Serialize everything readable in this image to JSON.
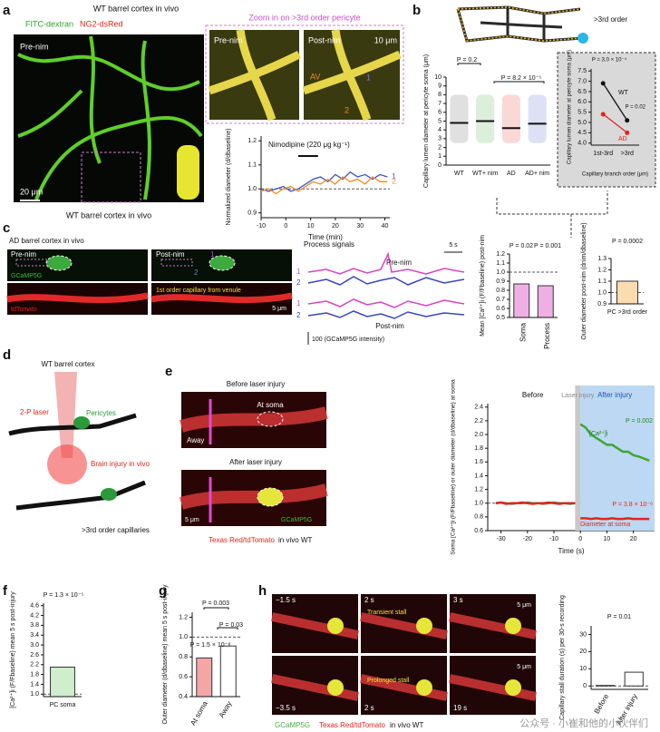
{
  "a": {
    "label": "a",
    "title": "WT barrel cortex in vivo",
    "dye": "FITC-dextran",
    "marker": "NG2-dsRed",
    "pre": "Pre-nim",
    "scale": "20 μm",
    "caption": "WT barrel cortex in vivo",
    "zoom_title": "Zoom in on >3rd order pericyte",
    "zoom_pre": "Pre-nim",
    "zoom_post": "Post-nim",
    "zoom_scale": "10 μm",
    "av": "AV",
    "roi": [
      "1",
      "2"
    ],
    "chart": {
      "type": "line",
      "annotation": "Nimodipine (220 μg kg⁻¹)",
      "drug_span": [
        5,
        13
      ],
      "ylabel": "Normalized diameter (d/dbaseline)",
      "xlabel": "Time (min)",
      "x": [
        -10,
        -7,
        -4,
        -1,
        2,
        5,
        8,
        11,
        14,
        17,
        20,
        23,
        26,
        29,
        32,
        35,
        38,
        41
      ],
      "xlim": [
        -10,
        42
      ],
      "xticks": [
        -10,
        0,
        10,
        20,
        30,
        40
      ],
      "ylim": [
        0.88,
        1.22
      ],
      "yticks": [
        0.9,
        {
          "value": 1,
          "label": "1.0"
        },
        1.1,
        1.2
      ],
      "reference_line": 1,
      "series": [
        {
          "name": "1",
          "color": "#3b55c4",
          "values": [
            1,
            0.99,
            1,
            1.01,
            0.99,
            1,
            1.02,
            1.04,
            1.05,
            1.03,
            1.06,
            1.04,
            1.07,
            1.05,
            1.06,
            1.04,
            1.06,
            1.05
          ]
        },
        {
          "name": "2",
          "color": "#f08a24",
          "values": [
            0.99,
            1,
            0.98,
            1,
            1.01,
            0.99,
            1.01,
            1.03,
            1.02,
            1.04,
            1.02,
            1.05,
            1.03,
            1.04,
            1.02,
            1.05,
            1.03,
            1.03
          ]
        }
      ]
    }
  },
  "b": {
    "label": "b",
    "branch_label": ">3rd order",
    "chart": {
      "type": "scatter-mean",
      "ylabel": "Capillary lumen diameter at pericyte soma (μm)",
      "categories": [
        "WT",
        "WT+ nim",
        "AD",
        "AD+ nim"
      ],
      "colors": [
        "#555555",
        "#3fa535",
        "#e0261b",
        "#4a55c8"
      ],
      "values": [
        4.8,
        5,
        4.2,
        4.7
      ],
      "ylim": [
        0,
        10
      ],
      "yticks": [
        0,
        1,
        2,
        3,
        4,
        5,
        6,
        7,
        8,
        9,
        10
      ],
      "annotations": [
        "P = 0.2",
        "P = 8.2 × 10⁻⁵"
      ]
    },
    "inset": {
      "type": "line",
      "ylabel": "Capillary lumen diameter at pericyte soma (μm)",
      "xlabel": "Capillary branch order (μm)",
      "categories": [
        "1st-3rd",
        ">3rd"
      ],
      "ylim": [
        3.9,
        7.6
      ],
      "yticks": [
        {
          "value": 4,
          "label": "4.0"
        },
        4.5,
        {
          "value": 5,
          "label": "5.0"
        },
        5.5,
        {
          "value": 6,
          "label": "6.0"
        },
        6.5,
        {
          "value": 7,
          "label": "7.0"
        },
        7.5
      ],
      "series": [
        {
          "name": "WT",
          "color": "#111111",
          "values": [
            6.9,
            5.1
          ]
        },
        {
          "name": "AD",
          "color": "#e0261b",
          "values": [
            5.4,
            4.5
          ]
        }
      ],
      "annotations": [
        "P = 3.0 × 10⁻⁴",
        "P = 0.02"
      ]
    }
  },
  "c": {
    "label": "c",
    "title": "AD barrel cortex in vivo",
    "pre": "Pre-nim",
    "post": "Post-nim",
    "roi": [
      "1",
      "2"
    ],
    "green": "GCaMP5G",
    "red": "tdTomato",
    "vessel": "1st order capillary from venule",
    "scale": "5 μm",
    "traces": {
      "title": "Process signals",
      "pre": "Pre-nim",
      "post": "Post-nim",
      "time_scale": "5 s",
      "pre_roi": [
        "1",
        "2"
      ],
      "post_roi": [
        "1",
        "2"
      ],
      "intensity_scale": "100 (GCaMP5G intensity)"
    },
    "ca_chart": {
      "type": "bar",
      "ylabel": "Mean [Ca²⁺]i (F/Fbaseline) post-nim",
      "categories": [
        "Soma",
        "Process"
      ],
      "values": [
        0.87,
        0.85
      ],
      "color": "#eeb0e4",
      "ylim": [
        0.5,
        1.2
      ],
      "yticks": [
        0.5,
        0.6,
        0.7,
        0.8,
        0.9,
        {
          "value": 1,
          "label": "1.0"
        },
        1.1,
        1.2
      ],
      "reference_line": 1,
      "annotations": [
        "P = 0.02",
        "P = 0.001"
      ]
    },
    "diam_chart": {
      "type": "bar",
      "ylabel": "Outer diameter post-nim (dnim/dbaseline)",
      "categories": [
        "PC >3rd order"
      ],
      "values": [
        1.1
      ],
      "color": "#fbdcae",
      "ylim": [
        0.9,
        1.3
      ],
      "yticks": [
        0.9,
        {
          "value": 1,
          "label": "1.0"
        },
        1.1,
        1.2,
        1.3
      ],
      "reference_line": 1,
      "annotations": [
        "P = 0.0002"
      ]
    }
  },
  "d": {
    "label": "d",
    "title": "WT barrel cortex",
    "laser": "2-P laser",
    "pericytes": "Pericytes",
    "injury": "Brain injury in vivo",
    "capillaries": ">3rd order capillaries"
  },
  "e": {
    "label": "e",
    "before_title": "Before laser injury",
    "at_soma": "At soma",
    "away": "Away",
    "after_title": "After laser injury",
    "scale": "5 μm",
    "green": "GCaMP5G",
    "caption_red": "Texas Red/tdTomato",
    "caption_rest": "in vivo WT",
    "chart": {
      "type": "line",
      "phases": [
        "Before",
        "Laser injury",
        "After injury"
      ],
      "injury_span": [
        -2,
        0
      ],
      "annotations": [
        "P = 0.002",
        "P = 3.8 × 10⁻⁶"
      ],
      "ylabel": "Soma [Ca²⁺]i (F/Fbaseline) or outer diameter (d/dbaseline) at soma",
      "xlabel": "Time (s)",
      "x": [
        -32,
        -30,
        -28,
        -26,
        -24,
        -22,
        -20,
        -18,
        -16,
        -14,
        -12,
        -10,
        -8,
        -6,
        -4,
        -2,
        -1,
        0,
        2,
        4,
        6,
        8,
        10,
        12,
        14,
        16,
        18,
        20,
        22,
        24,
        26
      ],
      "xlim": [
        -35,
        28
      ],
      "xticks": [
        -30,
        -20,
        -10,
        0,
        10,
        20
      ],
      "ylim": [
        0.6,
        2.45
      ],
      "yticks": [
        0.6,
        0.8,
        {
          "value": 1,
          "label": "1.0"
        },
        1.2,
        1.4,
        1.6,
        1.8,
        {
          "value": 2,
          "label": "2.0"
        },
        2.2,
        2.4
      ],
      "reference_line": 1,
      "series": [
        {
          "name": "[Ca²⁺]i",
          "color": "#3fa535",
          "values": [
            1,
            1.01,
            1,
            0.99,
            1,
            1,
            1.01,
            1,
            1,
            0.99,
            1,
            1.01,
            1,
            1,
            0.99,
            1,
            null,
            2.15,
            2.1,
            2,
            1.95,
            1.9,
            1.85,
            1.85,
            1.8,
            1.75,
            1.75,
            1.7,
            1.68,
            1.65,
            1.62
          ]
        },
        {
          "name": "Diameter at soma",
          "color": "#e0261b",
          "values": [
            1,
            1.01,
            0.99,
            1,
            1,
            1.01,
            1,
            0.99,
            1,
            1,
            1.01,
            1,
            0.99,
            1,
            1,
            1,
            null,
            0.78,
            0.78,
            0.77,
            0.78,
            0.77,
            0.77,
            0.78,
            0.77,
            0.77,
            0.78,
            0.77,
            0.77,
            0.77,
            0.77
          ]
        }
      ]
    }
  },
  "f": {
    "label": "f",
    "chart": {
      "type": "bar",
      "ylabel": "[Ca²⁺]i (F/Fbaseline) mean 5 s post-injury",
      "categories": [
        "PC soma"
      ],
      "values": [
        2.1
      ],
      "color": "#cfeecb",
      "ylim": [
        0.9,
        4.7
      ],
      "yticks": [
        {
          "value": 1,
          "label": "1.0"
        },
        1.4,
        1.8,
        2.2,
        2.6,
        {
          "value": 3,
          "label": "3.0"
        },
        3.4,
        3.8,
        4.2,
        4.6
      ],
      "reference_line": 1,
      "annotations": [
        "P = 1.3 × 10⁻⁵"
      ]
    }
  },
  "g": {
    "label": "g",
    "chart": {
      "type": "bar",
      "ylabel": "Outer diameter (d/dbaseline) mean 5 s post-injury",
      "categories": [
        "At soma",
        "Away"
      ],
      "values": [
        0.79,
        0.91
      ],
      "colors": [
        "#f4a6a6",
        "#ffffff"
      ],
      "ylim": [
        0.4,
        1.25
      ],
      "yticks": [
        0.4,
        0.6,
        0.8,
        {
          "value": 1,
          "label": "1.0"
        },
        1.2
      ],
      "reference_line": 1,
      "annotations": [
        "P = 0.003",
        "P = 0.03",
        "P = 1.5 × 10⁻⁸"
      ]
    }
  },
  "h": {
    "label": "h",
    "frames": [
      "−1.5 s",
      "2 s",
      "3 s",
      "−3.5 s",
      "2 s",
      "19 s"
    ],
    "transient": "Transient stall",
    "prolonged": "Prolonged stall",
    "scale": [
      "5 μm",
      "5 μm"
    ],
    "green": "GCaMP5G",
    "red": "Texas Red/tdTomato",
    "rest": "in vivo WT",
    "chart": {
      "type": "bar",
      "ylabel": "Capillary stall duration (s) per 30-s recording",
      "categories": [
        "Before",
        "After injury"
      ],
      "values": [
        0.3,
        8
      ],
      "colors": [
        "#ffffff",
        "#ffffff"
      ],
      "ylim": [
        -2,
        35
      ],
      "yticks": [
        0,
        10,
        20,
        30
      ],
      "reference_line": 0,
      "annotations": [
        "P = 0.01"
      ]
    }
  },
  "watermark": "公众号 · 小崔和他的小伙伴们"
}
